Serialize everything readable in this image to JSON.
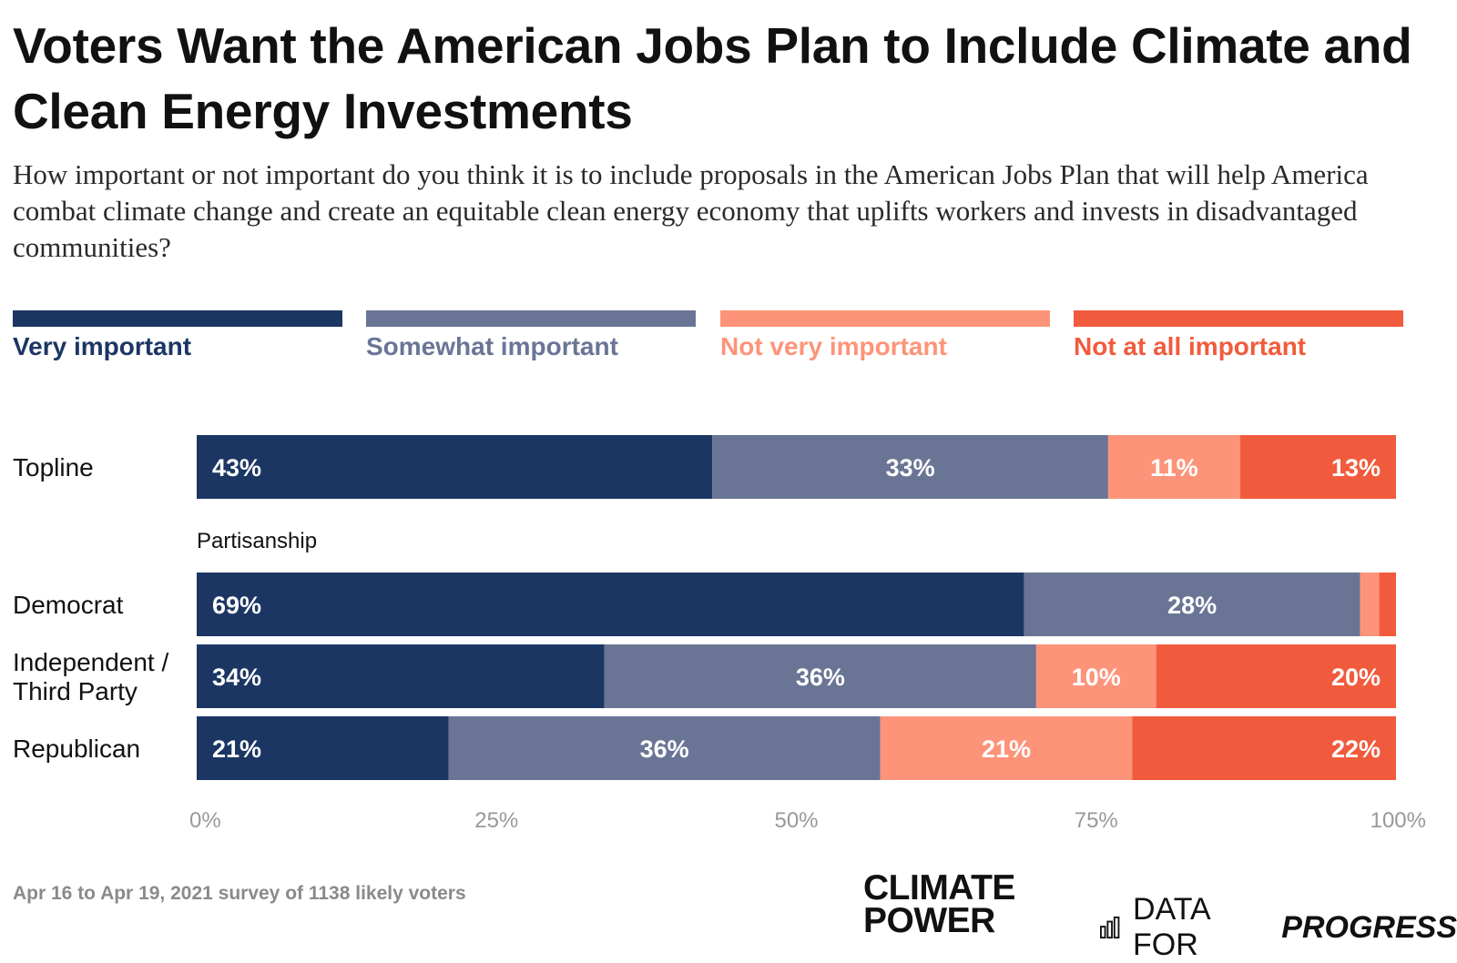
{
  "title": "Voters Want the American Jobs Plan to Include Climate and Clean Energy Investments",
  "subtitle": "How important or not important do you think it is to include proposals in the American Jobs Plan that will help America combat climate change and create an equitable clean energy economy that uplifts workers and invests in disadvantaged communities?",
  "legend": [
    {
      "label": "Very important",
      "color": "#1c3664"
    },
    {
      "label": "Somewhat important",
      "color": "#6a7596"
    },
    {
      "label": "Not very important",
      "color": "#fd9479"
    },
    {
      "label": "Not at all important",
      "color": "#f15b3d"
    }
  ],
  "footer": {
    "note": "Apr 16 to Apr 19, 2021 survey of 1138 likely voters",
    "logo_cp_line1": "CLIMATE",
    "logo_cp_line2": "POWER",
    "logo_dfp_a": "DATA FOR",
    "logo_dfp_b": "PROGRESS"
  },
  "chart_data": {
    "type": "bar",
    "orientation": "horizontal-stacked",
    "title": "Voters Want the American Jobs Plan to Include Climate and Clean Energy Investments",
    "xlim": [
      0,
      100
    ],
    "x_ticks": [
      "0%",
      "25%",
      "50%",
      "75%",
      "100%"
    ],
    "series_names": [
      "Very important",
      "Somewhat important",
      "Not very important",
      "Not at all important"
    ],
    "series_colors": [
      "#1c3664",
      "#6a7596",
      "#fd9479",
      "#f15b3d"
    ],
    "group_label": "Partisanship",
    "rows": [
      {
        "label": [
          "Topline"
        ],
        "values": [
          43,
          33,
          11,
          13
        ],
        "labels": [
          "43%",
          "33%",
          "11%",
          "13%"
        ]
      },
      {
        "label": [
          "Democrat"
        ],
        "values": [
          69,
          28,
          1.6,
          1.4
        ],
        "labels": [
          "69%",
          "28%",
          "",
          ""
        ]
      },
      {
        "label": [
          "Independent /",
          "Third Party"
        ],
        "values": [
          34,
          36,
          10,
          20
        ],
        "labels": [
          "34%",
          "36%",
          "10%",
          "20%"
        ]
      },
      {
        "label": [
          "Republican"
        ],
        "values": [
          21,
          36,
          21,
          22
        ],
        "labels": [
          "21%",
          "36%",
          "21%",
          "22%"
        ]
      }
    ]
  }
}
